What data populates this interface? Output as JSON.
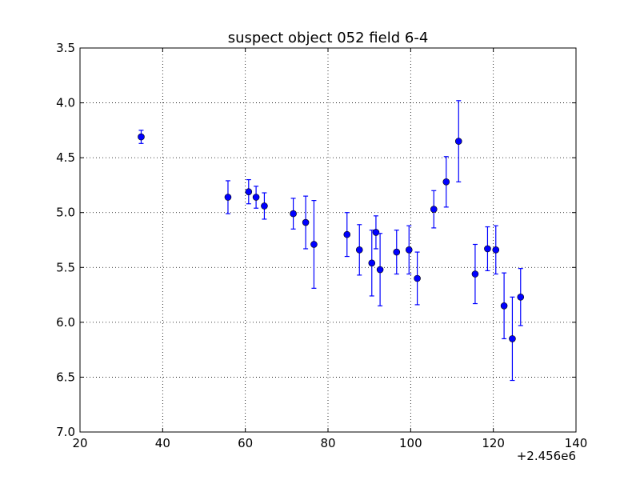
{
  "chart_data": {
    "type": "scatter",
    "title": "suspect object 052 field 6-4",
    "xlabel": "",
    "ylabel": "",
    "x_offset_label": "+2.456e6",
    "xlim": [
      20,
      140
    ],
    "ylim": [
      3.5,
      7.0
    ],
    "y_inverted": true,
    "grid": true,
    "x_ticks": [
      20,
      40,
      60,
      80,
      100,
      120,
      140
    ],
    "x_tick_labels": [
      "20",
      "40",
      "60",
      "80",
      "100",
      "120",
      "140"
    ],
    "y_ticks": [
      3.5,
      4.0,
      4.5,
      5.0,
      5.5,
      6.0,
      6.5,
      7.0
    ],
    "y_tick_labels": [
      "3.5",
      "4.0",
      "4.5",
      "5.0",
      "5.5",
      "6.0",
      "6.5",
      "7.0"
    ],
    "marker_color": "#0000ff",
    "errorbar_color": "#0000ff",
    "points": [
      {
        "x": 34.8,
        "y": 4.31,
        "err": 0.06
      },
      {
        "x": 55.8,
        "y": 4.86,
        "err": 0.15
      },
      {
        "x": 60.8,
        "y": 4.81,
        "err": 0.11
      },
      {
        "x": 62.6,
        "y": 4.86,
        "err": 0.1
      },
      {
        "x": 64.6,
        "y": 4.94,
        "err": 0.12
      },
      {
        "x": 71.6,
        "y": 5.01,
        "err": 0.14
      },
      {
        "x": 74.6,
        "y": 5.09,
        "err": 0.24
      },
      {
        "x": 76.6,
        "y": 5.29,
        "err": 0.4
      },
      {
        "x": 84.6,
        "y": 5.2,
        "err": 0.2
      },
      {
        "x": 87.6,
        "y": 5.34,
        "err": 0.23
      },
      {
        "x": 90.6,
        "y": 5.46,
        "err": 0.3
      },
      {
        "x": 91.6,
        "y": 5.18,
        "err": 0.15
      },
      {
        "x": 92.6,
        "y": 5.52,
        "err": 0.33
      },
      {
        "x": 96.6,
        "y": 5.36,
        "err": 0.2
      },
      {
        "x": 99.6,
        "y": 5.34,
        "err": 0.22
      },
      {
        "x": 101.6,
        "y": 5.6,
        "err": 0.24
      },
      {
        "x": 105.6,
        "y": 4.97,
        "err": 0.17
      },
      {
        "x": 108.6,
        "y": 4.72,
        "err": 0.23
      },
      {
        "x": 111.6,
        "y": 4.35,
        "err": 0.37
      },
      {
        "x": 115.6,
        "y": 5.56,
        "err": 0.27
      },
      {
        "x": 118.6,
        "y": 5.33,
        "err": 0.2
      },
      {
        "x": 120.6,
        "y": 5.34,
        "err": 0.22
      },
      {
        "x": 122.6,
        "y": 5.85,
        "err": 0.3
      },
      {
        "x": 124.6,
        "y": 6.15,
        "err": 0.38
      },
      {
        "x": 126.6,
        "y": 5.77,
        "err": 0.26
      }
    ]
  }
}
